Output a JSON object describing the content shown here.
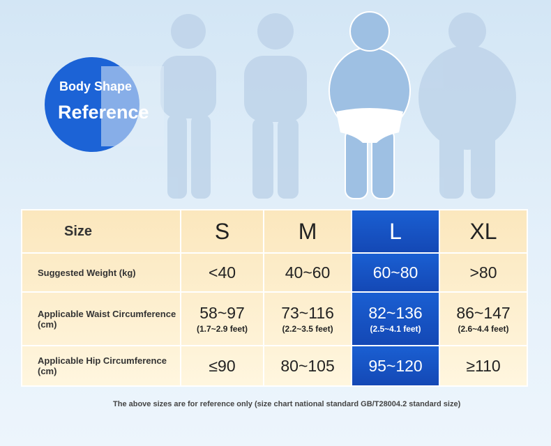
{
  "header": {
    "title_line1": "Body Shape",
    "title_line2": "Reference"
  },
  "table": {
    "size_label": "Size",
    "sizes": [
      "S",
      "M",
      "L",
      "XL"
    ],
    "rows": [
      {
        "label": "Suggested Weight (kg)",
        "unit": null,
        "values": [
          "<40",
          "40~60",
          "60~80",
          ">80"
        ],
        "notes": null
      },
      {
        "label": "Applicable Waist Circumference",
        "unit": "(cm)",
        "values": [
          "58~97",
          "73~116",
          "82~136",
          "86~147"
        ],
        "notes": [
          "(1.7~2.9 feet)",
          "(2.2~3.5 feet)",
          "(2.5~4.1 feet)",
          "(2.6~4.4 feet)"
        ]
      },
      {
        "label": "Applicable Hip Circumference",
        "unit": "(cm)",
        "values": [
          "≤90",
          "80~105",
          "95~120",
          "≥110"
        ],
        "notes": null
      }
    ]
  },
  "footer": {
    "note": "The above sizes are for reference only (size chart national standard GB/T28004.2 standard size)"
  }
}
